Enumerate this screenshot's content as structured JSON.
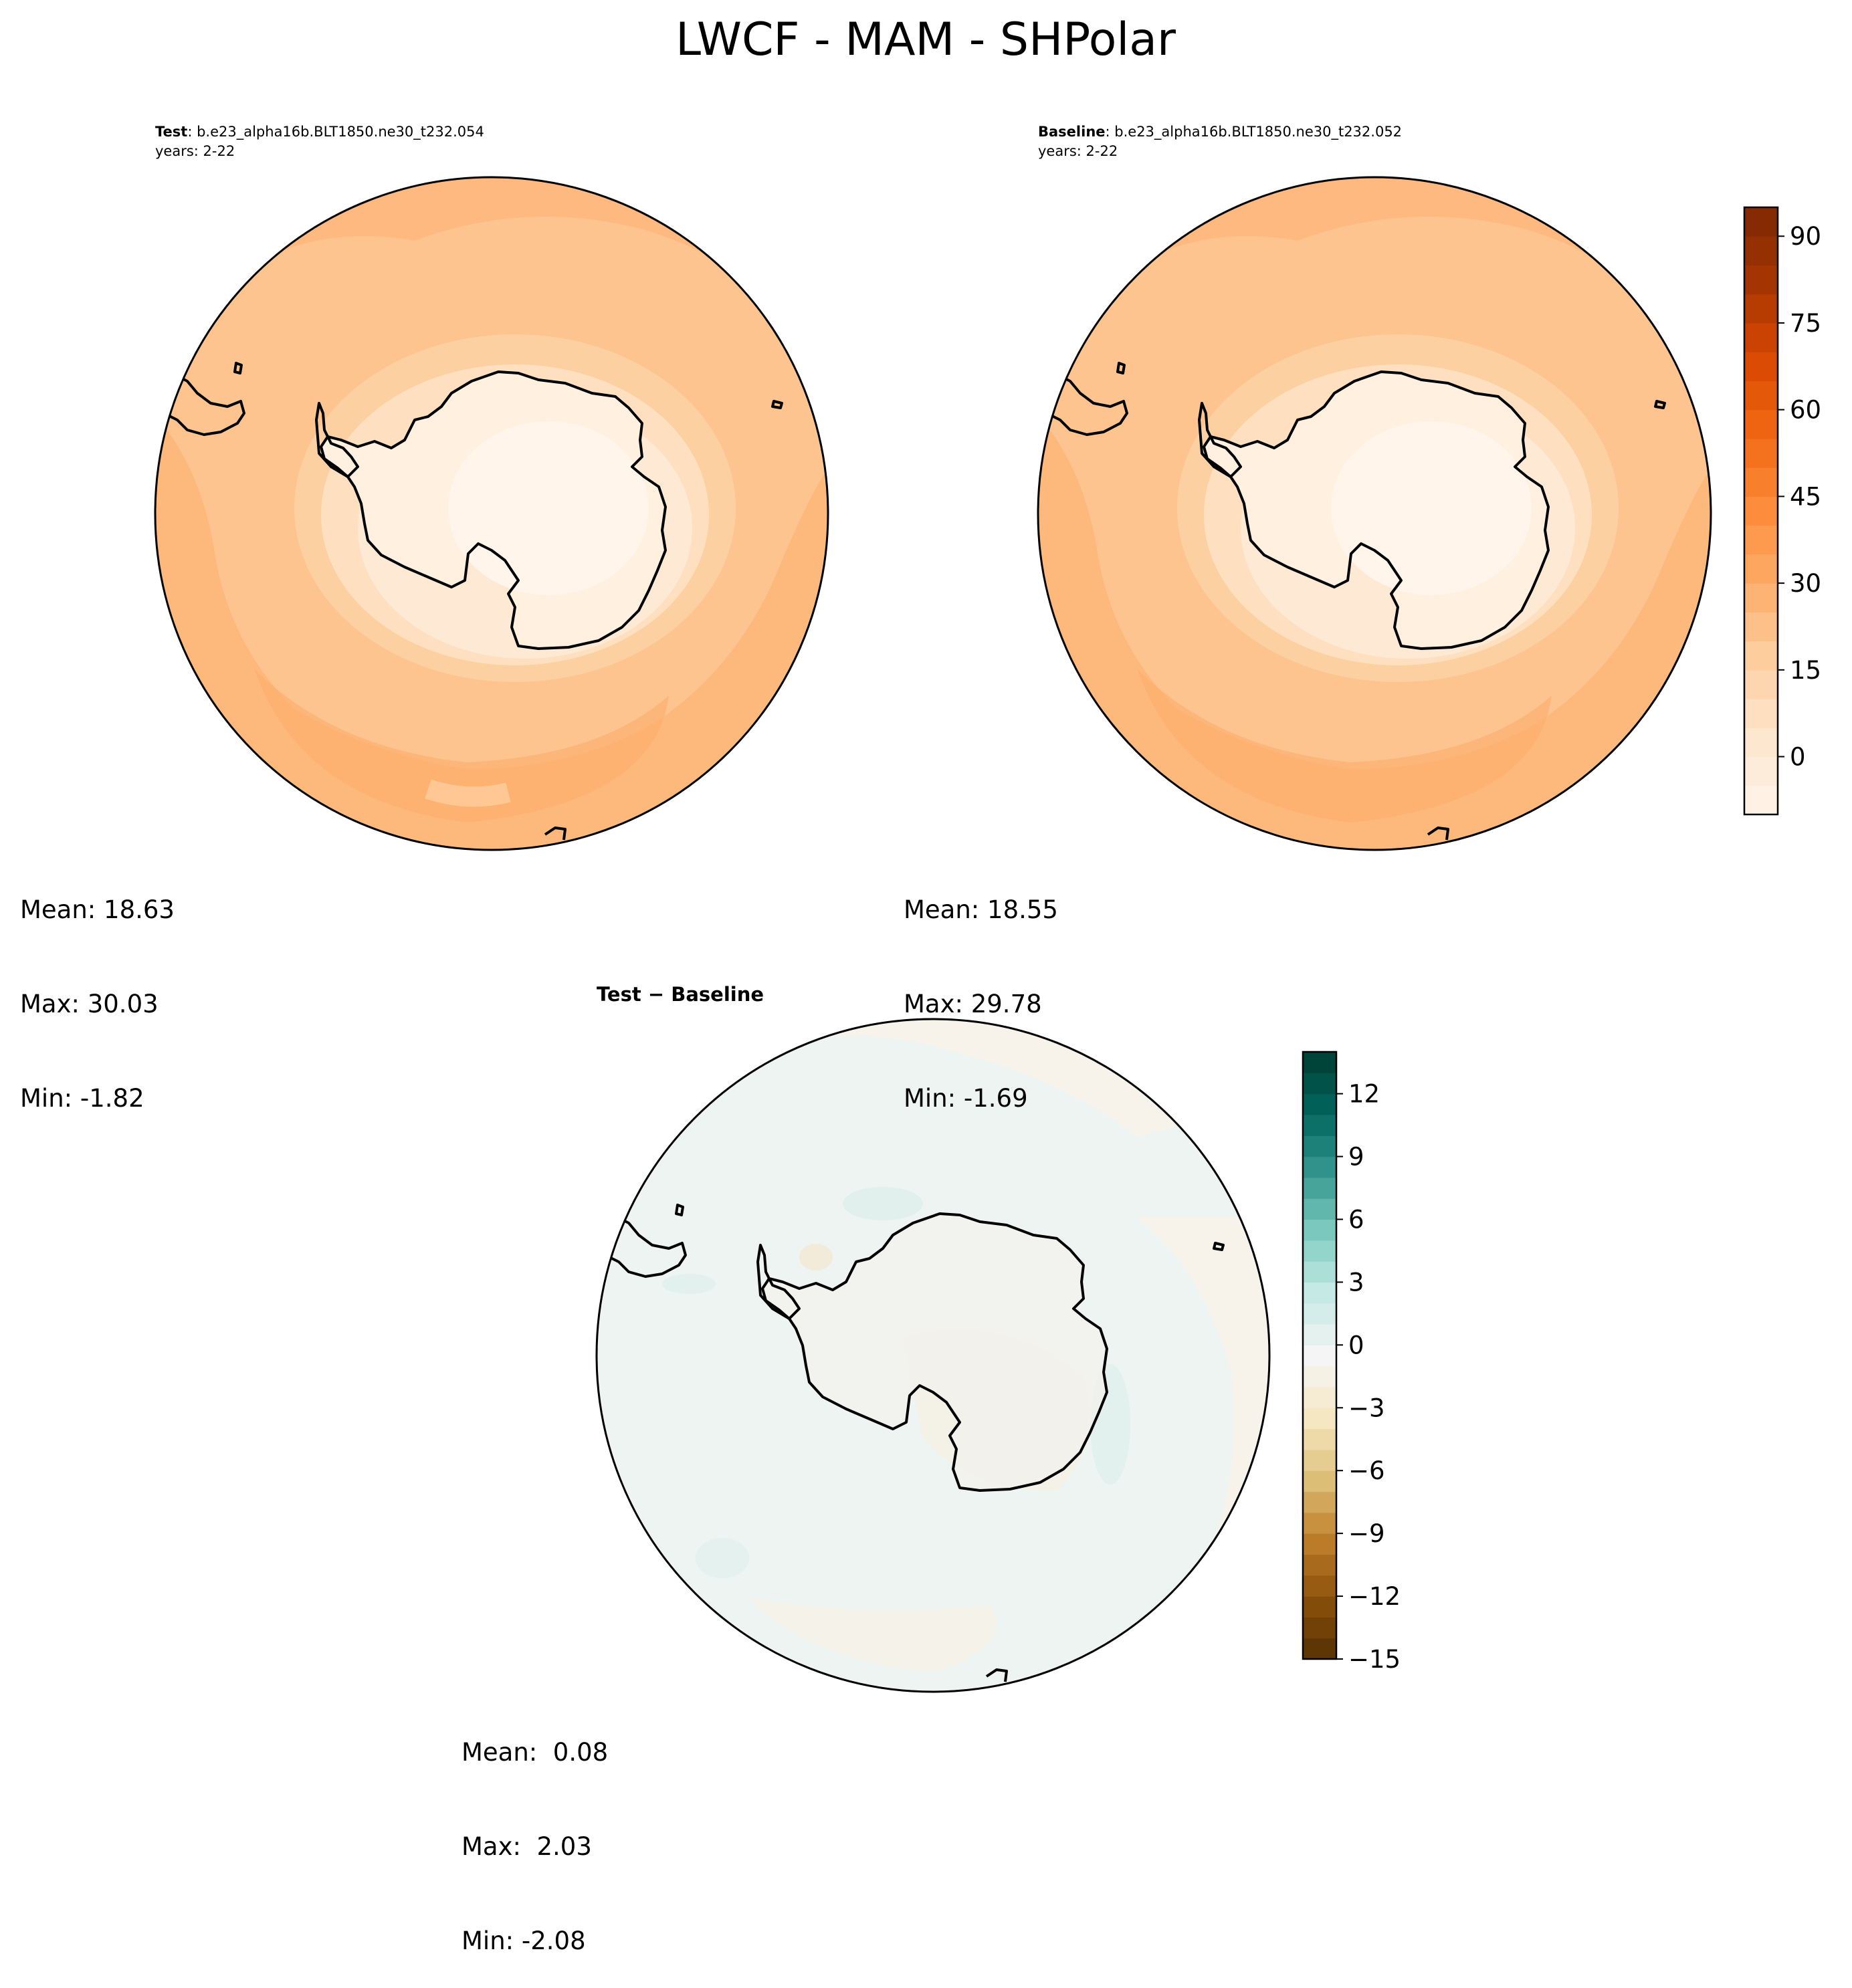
{
  "figure": {
    "title": "LWCF - MAM - SHPolar"
  },
  "panels": [
    {
      "id": "test",
      "label_bold": "Test",
      "label_rest": ": b.e23_alpha16b.BLT1850.ne30_t232.054",
      "years": "years: 2-22",
      "mean": "Mean: 18.63",
      "max": "Max: 30.03",
      "min": "Min: -1.82"
    },
    {
      "id": "baseline",
      "label_bold": "Baseline",
      "label_rest": ": b.e23_alpha16b.BLT1850.ne30_t232.052",
      "years": "years: 2-22",
      "mean": "Mean: 18.55",
      "max": "Max: 29.78",
      "min": "Min: -1.69"
    },
    {
      "id": "diff",
      "label_bold": "Test − Baseline",
      "mean": "Mean:  0.08",
      "max": "Max:  2.03",
      "min": "Min: -2.08"
    }
  ],
  "colorbars": {
    "main": {
      "colormap": "Oranges",
      "min": -10,
      "max": 95,
      "step": 5,
      "ticks": [
        "0",
        "15",
        "30",
        "45",
        "60",
        "75",
        "90"
      ],
      "tick_values": [
        0,
        15,
        30,
        45,
        60,
        75,
        90
      ],
      "colors": [
        "#fff5eb",
        "#fee6ce",
        "#fdd0a2",
        "#fdae6b",
        "#fd8d3c",
        "#f16913",
        "#d94801",
        "#a63603",
        "#7f2704"
      ]
    },
    "diff": {
      "colormap": "BrBG",
      "min": -15,
      "max": 14,
      "step": 1,
      "ticks": [
        "−15",
        "−12",
        "−9",
        "−6",
        "−3",
        "0",
        "3",
        "6",
        "9",
        "12"
      ],
      "tick_values": [
        -15,
        -12,
        -9,
        -6,
        -3,
        0,
        3,
        6,
        9,
        12
      ],
      "colors": [
        "#543005",
        "#8c510a",
        "#bf812d",
        "#dfc27d",
        "#f6e8c3",
        "#f5f5f5",
        "#c7eae5",
        "#80cdc1",
        "#35978f",
        "#01665e",
        "#003c30"
      ]
    }
  },
  "chart_data": [
    {
      "type": "heatmap",
      "projection": "south-polar-stereographic",
      "panel": "test",
      "colormap": "Oranges",
      "vmin": -10,
      "vmax": 95,
      "mean": 18.63,
      "max": 30.03,
      "min": -1.82
    },
    {
      "type": "heatmap",
      "projection": "south-polar-stereographic",
      "panel": "baseline",
      "colormap": "Oranges",
      "vmin": -10,
      "vmax": 95,
      "mean": 18.55,
      "max": 29.78,
      "min": -1.69
    },
    {
      "type": "heatmap",
      "projection": "south-polar-stereographic",
      "panel": "diff",
      "colormap": "BrBG",
      "vmin": -15,
      "vmax": 14,
      "mean": 0.08,
      "max": 2.03,
      "min": -2.08
    }
  ]
}
